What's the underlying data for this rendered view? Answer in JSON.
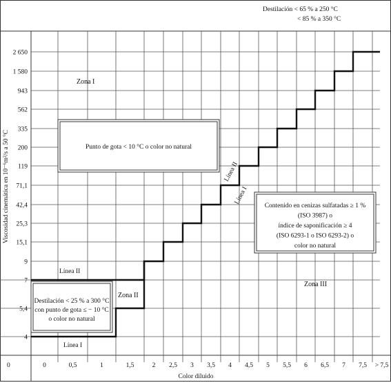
{
  "header_note": {
    "line1": "Destilación  < 65 % a 250 °C",
    "line2": "< 85 % a 350 °C"
  },
  "axes": {
    "y_title": "Viscosidad cinemática en 10⁻⁶m²/s a 50 °C",
    "x_title": "Color diluido",
    "y_ticks": [
      "2 650",
      "1 580",
      "943",
      "562",
      "335",
      "200",
      "119",
      "71,1",
      "42,4",
      "25,3",
      "15,1",
      "9",
      "7",
      "5,4",
      "4"
    ],
    "y_zero": "0",
    "x_ticks": [
      "0",
      "0,5",
      "1",
      "1,5",
      "2",
      "2,5",
      "3",
      "3,5",
      "4",
      "4,5",
      "5",
      "5,5",
      "6",
      "6,5",
      "7",
      "7,5",
      "> 7,5"
    ]
  },
  "zones": {
    "zona1": "Zona I",
    "zona2": "Zona II",
    "zona3": "Zona III"
  },
  "lines": {
    "linea1_lower": "Línea I",
    "linea2_upper": "Línea II",
    "linea2_diag": "Línea II",
    "linea1_diag": "Línea I"
  },
  "boxes": {
    "pour_point": "Punto de gota < 10 °C o color no natural",
    "ash_lines": [
      "Contenido en cenizas sulfatadas ≥ 1 %",
      "(ISO 3987) o",
      "índice de saponificación ≥ 4",
      "(ISO 6293-1 o ISO 6293-2) o",
      "color no natural"
    ],
    "distillation_lines": [
      "Destilación < 25 % a 300 °C",
      "con punto de gota ≤ − 10 °C",
      "o color no natural"
    ]
  },
  "colors": {
    "line": "#111111",
    "grid": "#555555",
    "box": "#333333"
  }
}
